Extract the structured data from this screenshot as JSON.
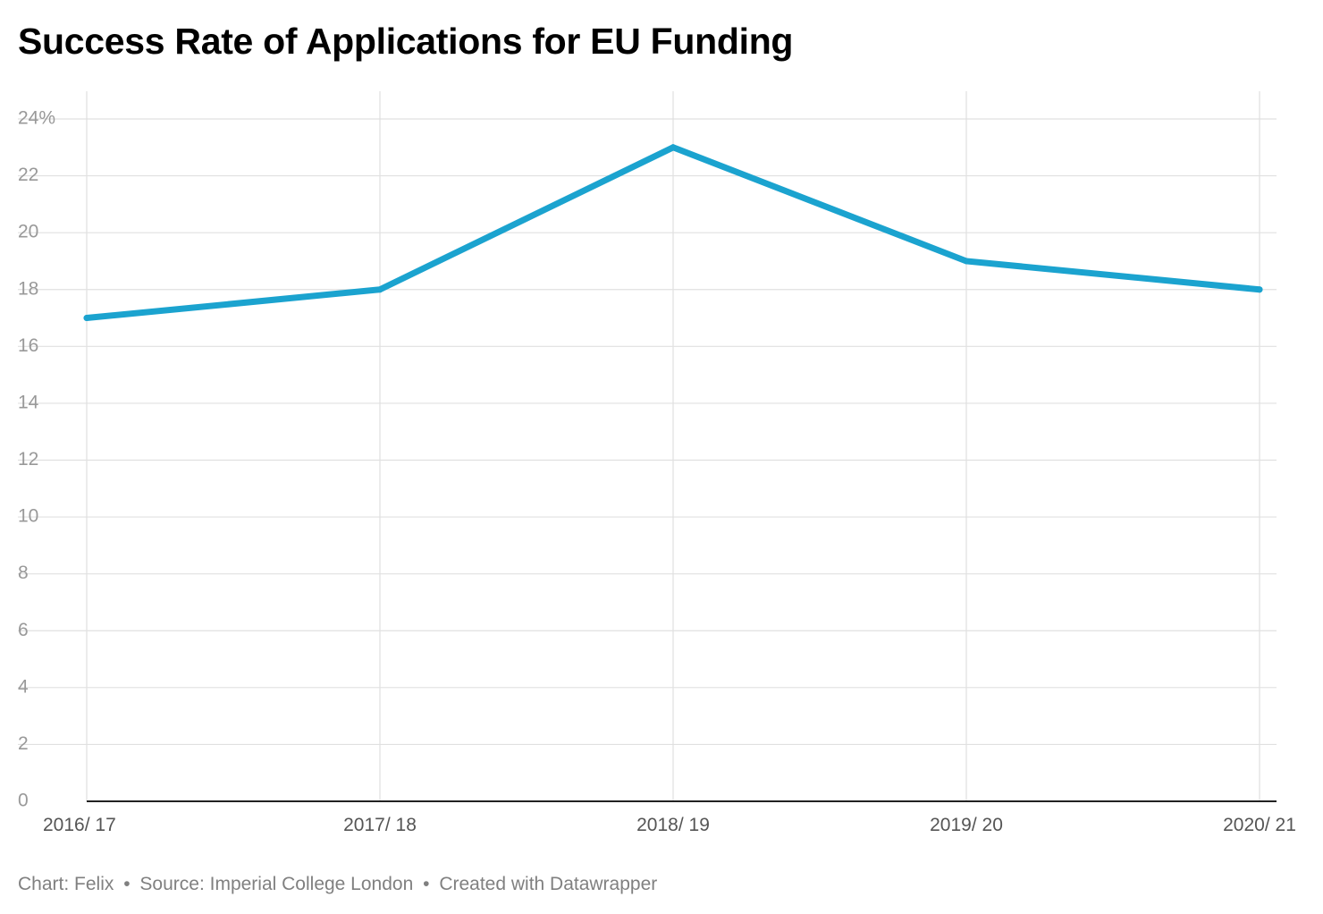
{
  "header": {
    "title": "Success Rate of Applications for EU Funding"
  },
  "footer": {
    "chart_by": "Chart: Felix",
    "separator": "•",
    "source": "Source: Imperial College London",
    "created_with": "Created with Datawrapper"
  },
  "colors": {
    "line": "#1ba3cf",
    "grid": "#e0e0e0",
    "axis": "#222222",
    "tick_label": "#999999",
    "footer_text": "#808080"
  },
  "chart_data": {
    "type": "line",
    "title": "Success Rate of Applications for EU Funding",
    "xlabel": "",
    "ylabel": "",
    "categories": [
      "2016/ 17",
      "2017/ 18",
      "2018/ 19",
      "2019/ 20",
      "2020/ 21"
    ],
    "series": [
      {
        "values": [
          17,
          18,
          23,
          19,
          18
        ]
      }
    ],
    "ylim": [
      0,
      24
    ],
    "yticks": [
      0,
      2,
      4,
      6,
      8,
      10,
      12,
      14,
      16,
      18,
      20,
      22,
      24
    ],
    "ytick_labels": [
      "0",
      "2",
      "4",
      "6",
      "8",
      "10",
      "12",
      "14",
      "16",
      "18",
      "20",
      "22",
      "24%"
    ],
    "grid": true,
    "legend": "none"
  }
}
